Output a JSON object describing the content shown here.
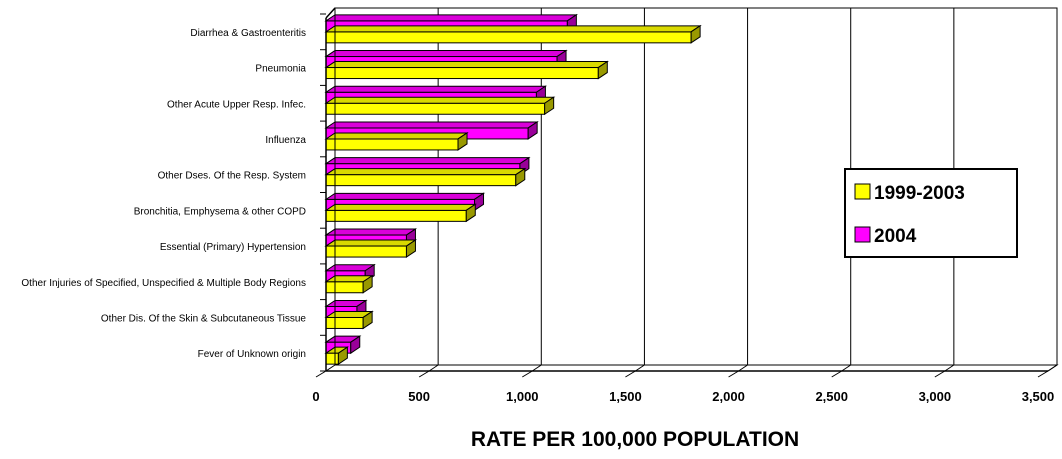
{
  "chart_data": {
    "type": "bar",
    "orientation": "horizontal",
    "three_d": true,
    "title": "",
    "xlabel": "RATE PER 100,000 POPULATION",
    "ylabel": "",
    "xlim": [
      0,
      3500
    ],
    "x_ticks": [
      "0",
      "500",
      "1,000",
      "1,500",
      "2,000",
      "2,500",
      "3,000",
      "3,500"
    ],
    "grid": "vertical",
    "legend_position": "right",
    "categories": [
      "Diarrhea & Gastroenteritis",
      "Pneumonia",
      "Other Acute Upper Resp. Infec.",
      "Influenza",
      "Other Dses. Of the Resp. System",
      "Bronchitia, Emphysema & other COPD",
      "Essential (Primary) Hypertension",
      "Other Injuries of Specified, Unspecified & Multiple Body Regions",
      "Other Dis. Of the Skin & Subcutaneous Tissue",
      "Fever of Unknown origin"
    ],
    "series": [
      {
        "name": "1999-2003",
        "color": "#ffff00",
        "values": [
          1770,
          1320,
          1060,
          640,
          920,
          680,
          390,
          180,
          180,
          60
        ]
      },
      {
        "name": "2004",
        "color": "#ff00ff",
        "values": [
          1170,
          1120,
          1020,
          980,
          940,
          720,
          390,
          190,
          150,
          120
        ]
      }
    ]
  }
}
